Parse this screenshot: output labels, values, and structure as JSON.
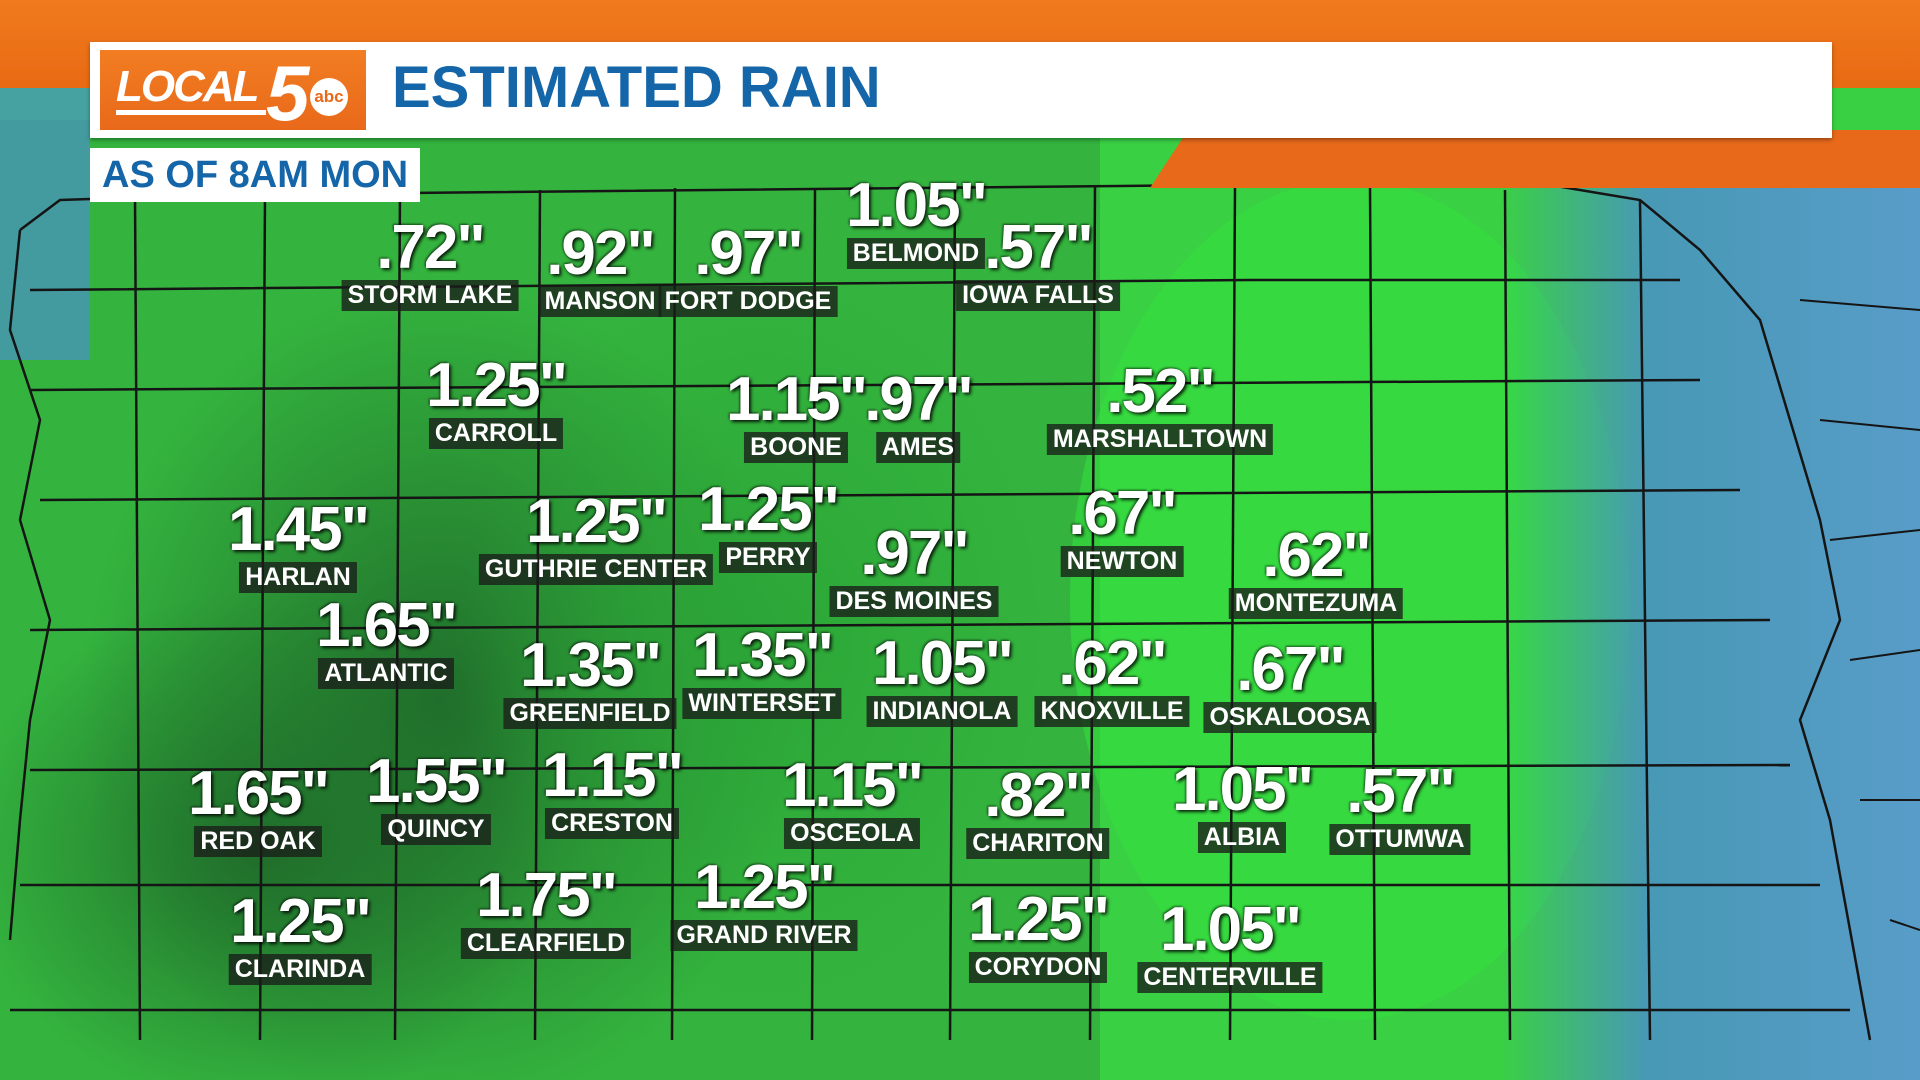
{
  "header": {
    "logo_word": "LOCAL",
    "logo_number": "5",
    "logo_network": "abc",
    "title": "ESTIMATED RAIN",
    "subtitle": "AS OF 8AM MON"
  },
  "colors": {
    "orange_band": "#e8691a",
    "title_blue": "#1466a9",
    "green_base": "#39c93f",
    "green_dark": "#2e8f38",
    "green_bright": "#2ee63a",
    "low_blue": "#4a8fc9",
    "border": "#1a1a1a"
  },
  "rain_totals": [
    {
      "value": ".72\"",
      "location": "STORM LAKE"
    },
    {
      "value": ".92\"",
      "location": "MANSON"
    },
    {
      "value": ".97\"",
      "location": "FORT DODGE"
    },
    {
      "value": "1.05\"",
      "location": "BELMOND"
    },
    {
      "value": ".57\"",
      "location": "IOWA FALLS"
    },
    {
      "value": "1.25\"",
      "location": "CARROLL"
    },
    {
      "value": "1.15\"",
      "location": "BOONE"
    },
    {
      "value": ".97\"",
      "location": "AMES"
    },
    {
      "value": ".52\"",
      "location": "MARSHALLTOWN"
    },
    {
      "value": "1.45\"",
      "location": "HARLAN"
    },
    {
      "value": "1.25\"",
      "location": "GUTHRIE CENTER"
    },
    {
      "value": "1.25\"",
      "location": "PERRY"
    },
    {
      "value": ".97\"",
      "location": "DES MOINES"
    },
    {
      "value": ".67\"",
      "location": "NEWTON"
    },
    {
      "value": ".62\"",
      "location": "MONTEZUMA"
    },
    {
      "value": "1.65\"",
      "location": "ATLANTIC"
    },
    {
      "value": "1.35\"",
      "location": "GREENFIELD"
    },
    {
      "value": "1.35\"",
      "location": "WINTERSET"
    },
    {
      "value": "1.05\"",
      "location": "INDIANOLA"
    },
    {
      "value": ".62\"",
      "location": "KNOXVILLE"
    },
    {
      "value": ".67\"",
      "location": "OSKALOOSA"
    },
    {
      "value": "1.65\"",
      "location": "RED OAK"
    },
    {
      "value": "1.55\"",
      "location": "QUINCY"
    },
    {
      "value": "1.15\"",
      "location": "CRESTON"
    },
    {
      "value": "1.15\"",
      "location": "OSCEOLA"
    },
    {
      "value": ".82\"",
      "location": "CHARITON"
    },
    {
      "value": "1.05\"",
      "location": "ALBIA"
    },
    {
      "value": ".57\"",
      "location": "OTTUMWA"
    },
    {
      "value": "1.25\"",
      "location": "CLARINDA"
    },
    {
      "value": "1.75\"",
      "location": "CLEARFIELD"
    },
    {
      "value": "1.25\"",
      "location": "GRAND RIVER"
    },
    {
      "value": "1.25\"",
      "location": "CORYDON"
    },
    {
      "value": "1.05\"",
      "location": "CENTERVILLE"
    }
  ]
}
